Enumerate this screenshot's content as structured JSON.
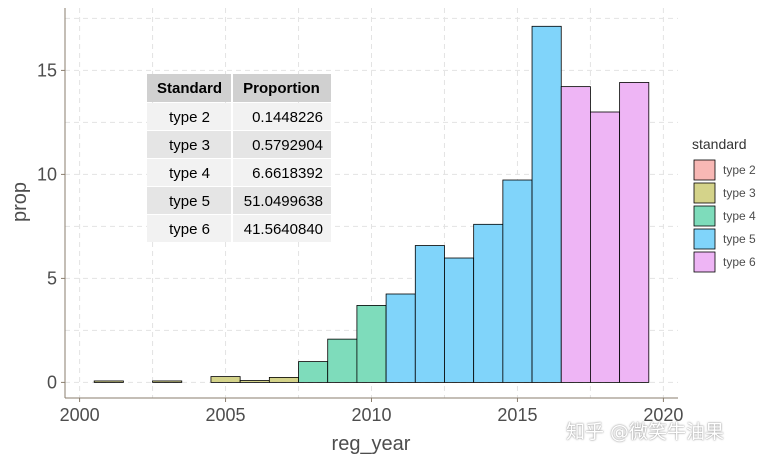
{
  "chart_data": {
    "type": "bar",
    "xlabel": "reg_year",
    "ylabel": "prop",
    "xlim": [
      1999.5,
      2020.5
    ],
    "ylim": [
      -0.75,
      18
    ],
    "x_ticks": [
      2000,
      2005,
      2010,
      2015,
      2020
    ],
    "y_ticks": [
      0,
      5,
      10,
      15
    ],
    "grid": true,
    "bin_width": 1,
    "bars": [
      {
        "x": 2001,
        "y": 0.07,
        "group": "type 3"
      },
      {
        "x": 2003,
        "y": 0.07,
        "group": "type 3"
      },
      {
        "x": 2005,
        "y": 0.28,
        "group": "type 3"
      },
      {
        "x": 2006,
        "y": 0.09,
        "group": "type 3"
      },
      {
        "x": 2007,
        "y": 0.24,
        "group": "type 3"
      },
      {
        "x": 2008,
        "y": 1.0,
        "group": "type 4"
      },
      {
        "x": 2009,
        "y": 2.08,
        "group": "type 4"
      },
      {
        "x": 2010,
        "y": 3.7,
        "group": "type 4"
      },
      {
        "x": 2011,
        "y": 4.25,
        "group": "type 5"
      },
      {
        "x": 2012,
        "y": 6.58,
        "group": "type 5"
      },
      {
        "x": 2013,
        "y": 5.98,
        "group": "type 5"
      },
      {
        "x": 2014,
        "y": 7.6,
        "group": "type 5"
      },
      {
        "x": 2015,
        "y": 9.73,
        "group": "type 5"
      },
      {
        "x": 2016,
        "y": 17.12,
        "group": "type 5"
      },
      {
        "x": 2017,
        "y": 14.22,
        "group": "type 6"
      },
      {
        "x": 2018,
        "y": 13.0,
        "group": "type 6"
      },
      {
        "x": 2019,
        "y": 14.42,
        "group": "type 6"
      }
    ],
    "legend": {
      "title": "standard",
      "position": "right",
      "items": [
        {
          "label": "type 2",
          "color": "#F8B8B5"
        },
        {
          "label": "type 3",
          "color": "#D4D38A"
        },
        {
          "label": "type 4",
          "color": "#7EDCBB"
        },
        {
          "label": "type 5",
          "color": "#80D4FA"
        },
        {
          "label": "type 6",
          "color": "#EEB5F5"
        }
      ]
    },
    "table": {
      "headers": [
        "Standard",
        "Proportion"
      ],
      "rows": [
        [
          "type 2",
          "0.1448226"
        ],
        [
          "type 3",
          "0.5792904"
        ],
        [
          "type 4",
          "6.6618392"
        ],
        [
          "type 5",
          "51.0499638"
        ],
        [
          "type 6",
          "41.5640840"
        ]
      ]
    }
  },
  "watermark": "知乎 @微笑牛油果"
}
